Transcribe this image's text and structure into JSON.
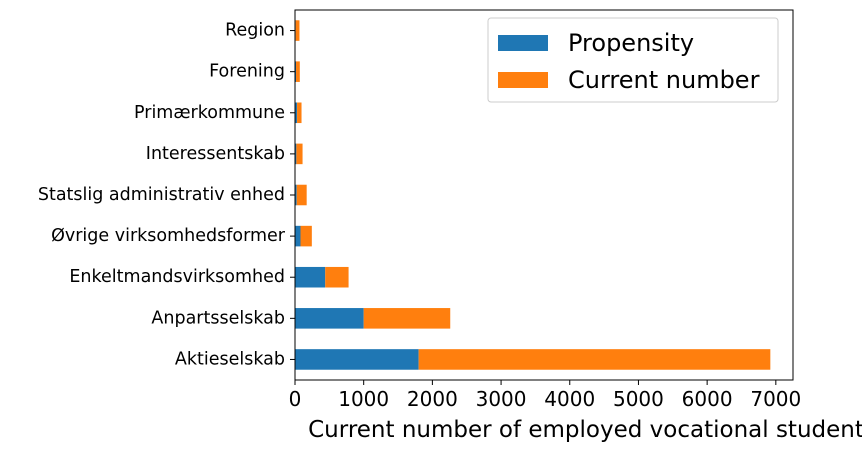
{
  "chart_data": {
    "type": "bar",
    "orientation": "horizontal",
    "stacked": true,
    "categories": [
      "Aktieselskab",
      "Anpartsselskab",
      "Enkeltmandsvirksomhed",
      "Øvrige virksomhedsformer",
      "Statslig administrativ enhed",
      "Interessentskab",
      "Primærkommune",
      "Forening",
      "Region"
    ],
    "series": [
      {
        "name": "Propensity",
        "color": "#1f77b4",
        "values": [
          1800,
          1000,
          440,
          80,
          25,
          20,
          30,
          15,
          10
        ]
      },
      {
        "name": "Current number",
        "color": "#ff7f0e",
        "values": [
          5120,
          1260,
          340,
          165,
          145,
          90,
          65,
          55,
          55
        ]
      }
    ],
    "title": "",
    "xlabel": "Current number of employed vocational students",
    "ylabel": "",
    "xlim": [
      0,
      7250
    ],
    "xticks": [
      0,
      1000,
      2000,
      3000,
      4000,
      5000,
      6000,
      7000
    ],
    "grid": false,
    "legend_position": "upper right"
  }
}
